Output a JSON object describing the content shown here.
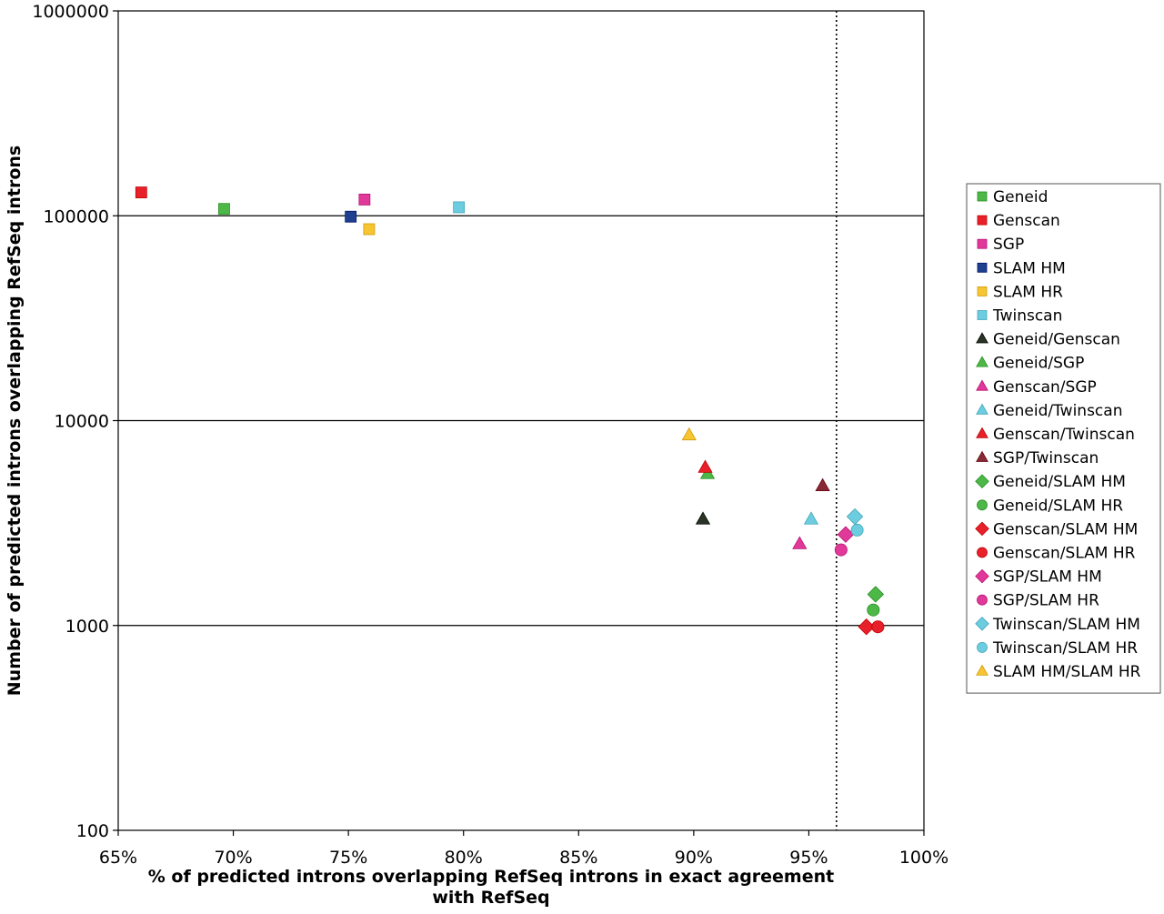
{
  "chart_data": {
    "type": "scatter",
    "title": "",
    "xlabel": "% of predicted introns overlapping RefSeq introns in exact agreement with RefSeq",
    "xlabel_lines": [
      "% of predicted introns overlapping RefSeq introns in exact agreement",
      "with RefSeq"
    ],
    "ylabel": "Number of predicted introns overlapping RefSeq introns",
    "x_scale": "linear",
    "y_scale": "log",
    "xlim": [
      65,
      100
    ],
    "ylim": [
      100,
      1000000
    ],
    "x_ticks": [
      65,
      70,
      75,
      80,
      85,
      90,
      95,
      100
    ],
    "x_tick_labels": [
      "65%",
      "70%",
      "75%",
      "80%",
      "85%",
      "90%",
      "95%",
      "100%"
    ],
    "y_ticks": [
      100,
      1000,
      10000,
      100000,
      1000000
    ],
    "y_tick_labels": [
      "100",
      "1000",
      "10000",
      "100000",
      "1000000"
    ],
    "grid": "horizontal",
    "reference_line": {
      "style": "dotted",
      "axis": "x",
      "value": 96.2
    },
    "legend_position": "right",
    "series": [
      {
        "name": "Geneid",
        "marker": "square",
        "color": "#4db848",
        "points": [
          [
            69.6,
            108000
          ]
        ]
      },
      {
        "name": "Genscan",
        "marker": "square",
        "color": "#e8202a",
        "points": [
          [
            66.0,
            130000
          ]
        ]
      },
      {
        "name": "SGP",
        "marker": "square",
        "color": "#e0399a",
        "points": [
          [
            75.7,
            120000
          ]
        ]
      },
      {
        "name": "SLAM HM",
        "marker": "square",
        "color": "#1f3f8f",
        "points": [
          [
            75.1,
            99000
          ]
        ]
      },
      {
        "name": "SLAM HR",
        "marker": "square",
        "color": "#f7c531",
        "points": [
          [
            75.9,
            86000
          ]
        ]
      },
      {
        "name": "Twinscan",
        "marker": "square",
        "color": "#6ccde0",
        "points": [
          [
            79.8,
            110000
          ]
        ]
      },
      {
        "name": "Geneid/Genscan",
        "marker": "triangle",
        "color": "#2a3326",
        "points": [
          [
            90.4,
            3300
          ]
        ]
      },
      {
        "name": "Geneid/SGP",
        "marker": "triangle",
        "color": "#4db848",
        "points": [
          [
            90.6,
            5500
          ]
        ]
      },
      {
        "name": "Genscan/SGP",
        "marker": "triangle",
        "color": "#e0399a",
        "points": [
          [
            94.6,
            2500
          ]
        ]
      },
      {
        "name": "Geneid/Twinscan",
        "marker": "triangle",
        "color": "#6ccde0",
        "points": [
          [
            95.1,
            3300
          ]
        ]
      },
      {
        "name": "Genscan/Twinscan",
        "marker": "triangle",
        "color": "#e8202a",
        "points": [
          [
            90.5,
            5900
          ]
        ]
      },
      {
        "name": "SGP/Twinscan",
        "marker": "triangle",
        "color": "#8a2a36",
        "points": [
          [
            95.6,
            4800
          ]
        ]
      },
      {
        "name": "Geneid/SLAM HM",
        "marker": "diamond",
        "color": "#4db848",
        "points": [
          [
            97.9,
            1420
          ]
        ]
      },
      {
        "name": "Geneid/SLAM HR",
        "marker": "circle",
        "color": "#4db848",
        "points": [
          [
            97.8,
            1190
          ]
        ]
      },
      {
        "name": "Genscan/SLAM HM",
        "marker": "diamond",
        "color": "#e8202a",
        "points": [
          [
            97.5,
            985
          ]
        ]
      },
      {
        "name": "Genscan/SLAM HR",
        "marker": "circle",
        "color": "#e8202a",
        "points": [
          [
            98.0,
            985
          ]
        ]
      },
      {
        "name": "SGP/SLAM HM",
        "marker": "diamond",
        "color": "#e0399a",
        "points": [
          [
            96.6,
            2780
          ]
        ]
      },
      {
        "name": "SGP/SLAM HR",
        "marker": "circle",
        "color": "#e0399a",
        "points": [
          [
            96.4,
            2340
          ]
        ]
      },
      {
        "name": "Twinscan/SLAM HM",
        "marker": "diamond",
        "color": "#6ccde0",
        "points": [
          [
            97.0,
            3400
          ]
        ]
      },
      {
        "name": "Twinscan/SLAM HR",
        "marker": "circle",
        "color": "#6ccde0",
        "points": [
          [
            97.1,
            2920
          ]
        ]
      },
      {
        "name": "SLAM HM/SLAM HR",
        "marker": "triangle",
        "color": "#f7c531",
        "points": [
          [
            89.8,
            8500
          ]
        ]
      }
    ]
  }
}
